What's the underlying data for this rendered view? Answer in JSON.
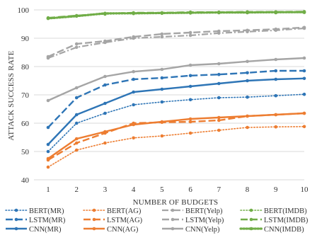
{
  "chart_data": {
    "type": "line",
    "title": "",
    "xlabel": "NUMBER OF BUDGETS",
    "ylabel": "ATTACK SUCCESS RATE",
    "x": [
      1,
      2,
      3,
      4,
      5,
      6,
      7,
      8,
      9,
      10
    ],
    "xlim": [
      1,
      10
    ],
    "ylim": [
      40,
      100
    ],
    "yticks": [
      40,
      50,
      60,
      70,
      80,
      90,
      100
    ],
    "grid": "horizontal",
    "legend_position": "bottom",
    "series": [
      {
        "name": "BERT(MR)",
        "color": "#2E75B6",
        "style": "dotted",
        "values": [
          50,
          60,
          63.5,
          66.5,
          67.5,
          68.3,
          69,
          69.2,
          69.7,
          70.2
        ]
      },
      {
        "name": "BERT(AG)",
        "color": "#ED7D31",
        "style": "dotted",
        "values": [
          44.5,
          50.5,
          53,
          54.8,
          55.5,
          56.5,
          57.5,
          58.5,
          58.7,
          58.8
        ]
      },
      {
        "name": "BERT(Yelp)",
        "color": "#A5A5A5",
        "style": "dashdot",
        "values": [
          83,
          86.8,
          88.5,
          90,
          90.5,
          91,
          91.8,
          92.3,
          92.8,
          93.5
        ]
      },
      {
        "name": "BERT(IMDB)",
        "color": "#70AD47",
        "style": "dotted",
        "values": [
          97,
          97.8,
          98.5,
          98.7,
          98.8,
          98.9,
          99,
          99,
          99,
          99.1
        ]
      },
      {
        "name": "LSTM(MR)",
        "color": "#2E75B6",
        "style": "longdash",
        "values": [
          58.5,
          69,
          73.5,
          75.5,
          76,
          76.8,
          77.2,
          77.8,
          78.5,
          78.5
        ]
      },
      {
        "name": "LSTM(AG)",
        "color": "#ED7D31",
        "style": "longdash",
        "values": [
          47,
          53,
          56.5,
          60,
          60.3,
          60.5,
          61,
          62.5,
          63,
          63.5
        ]
      },
      {
        "name": "LSTM(Yelp)",
        "color": "#A5A5A5",
        "style": "longdash",
        "values": [
          83.5,
          88,
          89,
          90.5,
          91.5,
          92,
          92.5,
          92.8,
          93.2,
          93.8
        ]
      },
      {
        "name": "LSTM(IMDB)",
        "color": "#70AD47",
        "style": "longdash",
        "values": [
          97.2,
          98,
          98.7,
          99,
          99,
          99.2,
          99.2,
          99.3,
          99.3,
          99.4
        ]
      },
      {
        "name": "CNN(MR)",
        "color": "#2E75B6",
        "style": "solid",
        "values": [
          52.5,
          63,
          67,
          71,
          72,
          73,
          74,
          75,
          75.5,
          75.8
        ]
      },
      {
        "name": "CNN(AG)",
        "color": "#ED7D31",
        "style": "solid",
        "values": [
          47.5,
          54.5,
          57,
          59.5,
          60.5,
          61.5,
          62,
          62.5,
          63,
          63.5
        ]
      },
      {
        "name": "CNN(Yelp)",
        "color": "#A5A5A5",
        "style": "solid",
        "values": [
          68,
          72.5,
          76.5,
          78.2,
          79,
          80.5,
          81,
          81.8,
          82.5,
          83
        ]
      },
      {
        "name": "CNN(IMDB)",
        "color": "#70AD47",
        "style": "dottedthick",
        "values": [
          97,
          97.8,
          98.8,
          98.8,
          98.9,
          99,
          99.1,
          99.1,
          99.2,
          99.2
        ]
      }
    ]
  }
}
